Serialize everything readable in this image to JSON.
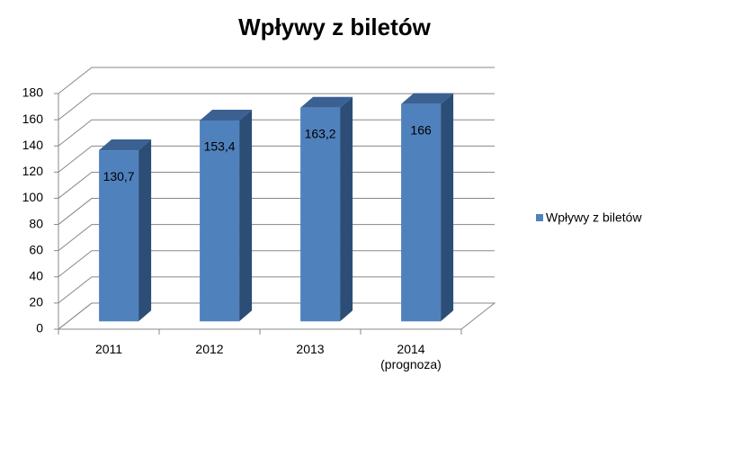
{
  "chart_data": {
    "type": "bar3d",
    "title": "Wpływy z biletów",
    "categories": [
      "2011",
      "2012",
      "2013",
      "2014 (prognoza)"
    ],
    "series": [
      {
        "name": "Wpływy z biletów",
        "color": "#4f81bd",
        "values": [
          130.7,
          153.4,
          163.2,
          166
        ],
        "value_labels": [
          "130,7",
          "153,4",
          "163,2",
          "166"
        ]
      }
    ],
    "ylim": [
      0,
      180
    ],
    "yticks": [
      0,
      20,
      40,
      60,
      80,
      100,
      120,
      140,
      160,
      180
    ],
    "grid": true,
    "legend": "right"
  }
}
